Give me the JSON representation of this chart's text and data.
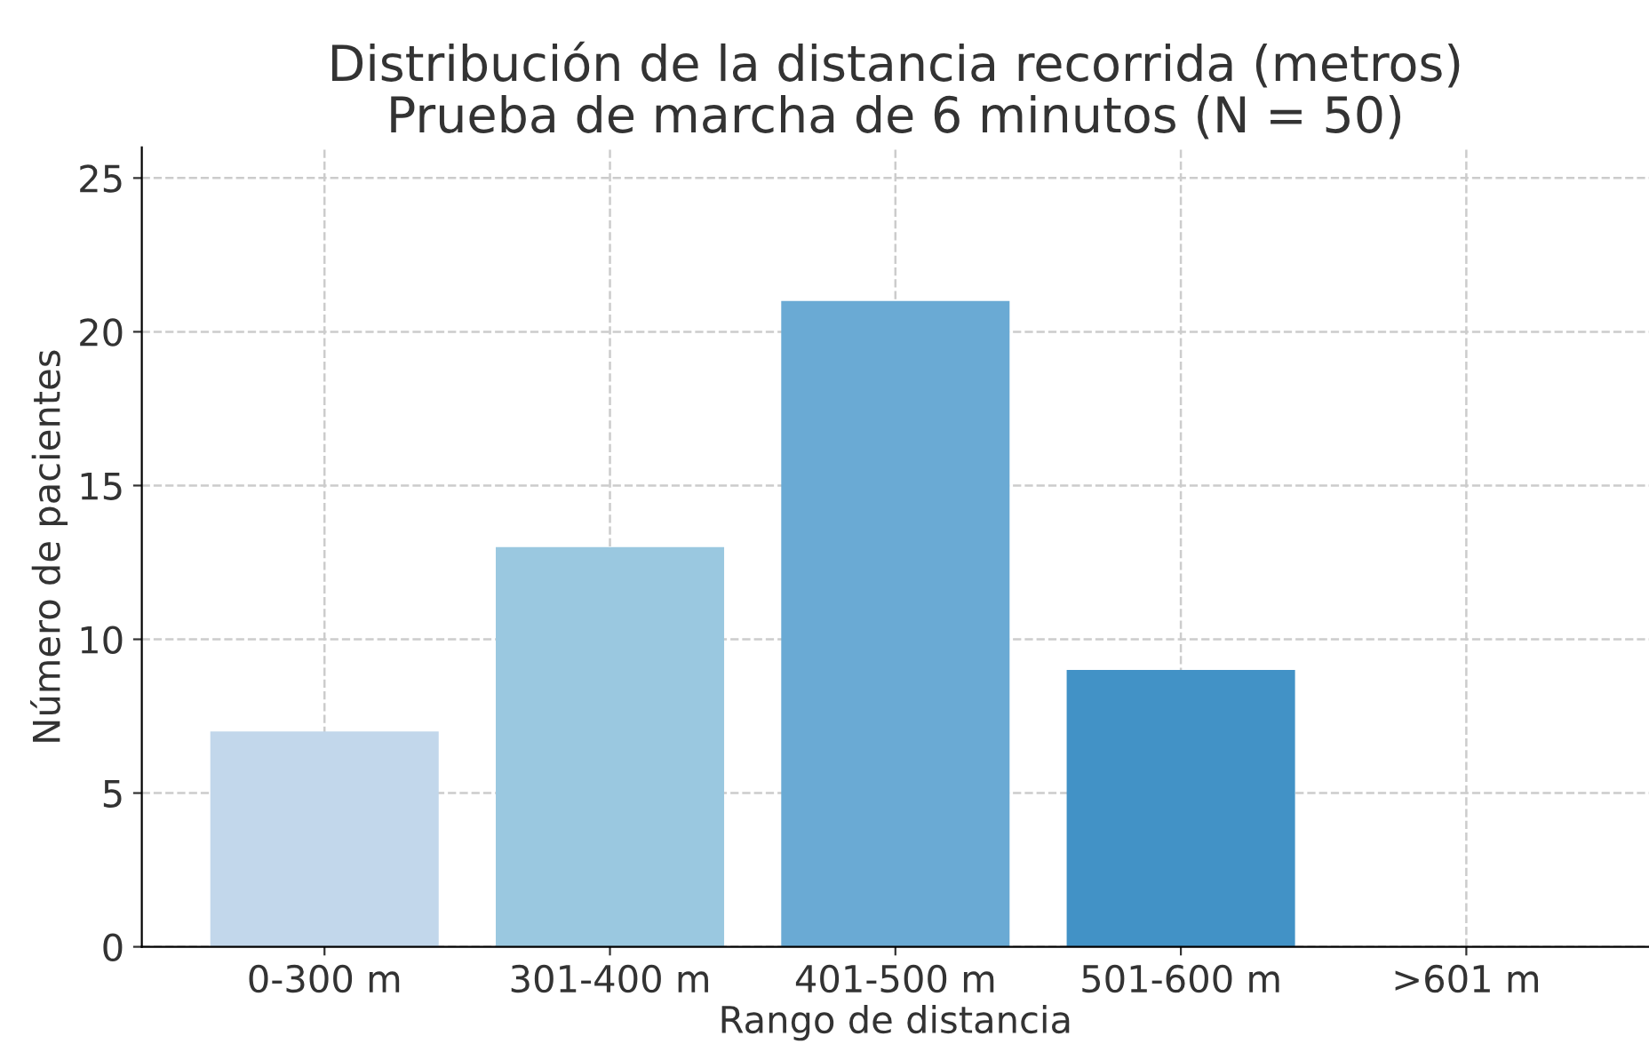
{
  "chart_data": {
    "type": "bar",
    "title": "Distribución de la distancia recorrida (metros)\nPrueba de marcha de 6 minutos (N = 50)",
    "xlabel": "Rango de distancia",
    "ylabel": "Número de pacientes",
    "categories": [
      "0-300 m",
      "301-400 m",
      "401-500 m",
      "501-600 m",
      ">601 m"
    ],
    "values": [
      7,
      13,
      21,
      9,
      0
    ],
    "colors": [
      "#c2d7eb",
      "#9ac8e0",
      "#6aaad4",
      "#4292c6",
      "#2171b5"
    ],
    "ylim": [
      0,
      26
    ],
    "yticks": [
      0,
      5,
      10,
      15,
      20,
      25
    ],
    "grid": true,
    "line_style": "dashed"
  }
}
